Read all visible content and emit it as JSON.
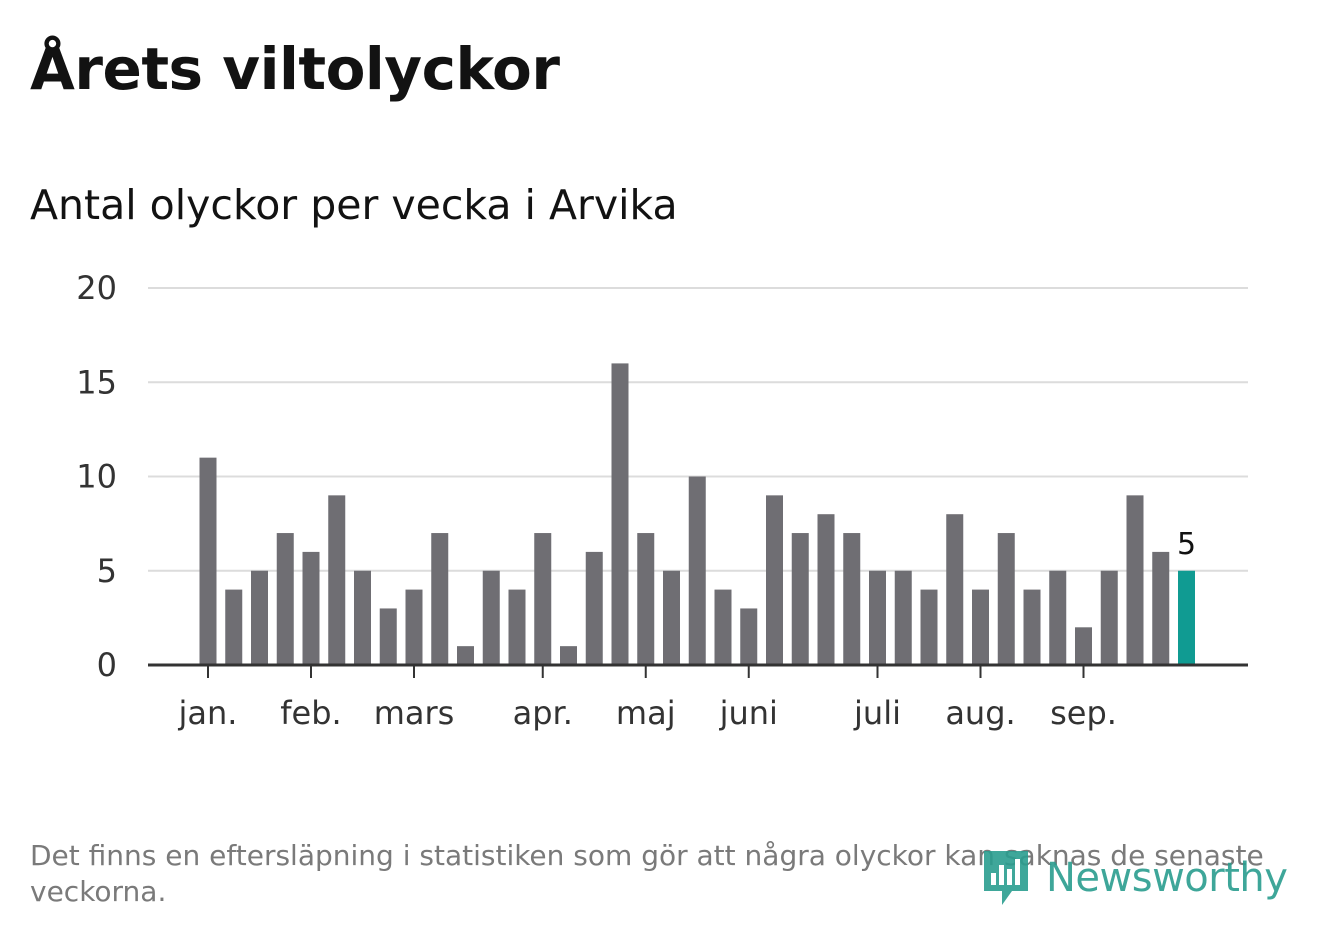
{
  "header": {
    "title": "Årets viltolyckor",
    "subtitle": "Antal olyckor per vecka i Arvika"
  },
  "footnote": "Det finns en eftersläpning i statistiken som gör att några olyckor kan saknas de senaste veckorna.",
  "brand": {
    "name": "Newsworthy",
    "icon": "newsworthy-logo-icon"
  },
  "colors": {
    "bar": "#6f6e73",
    "highlight": "#109b92",
    "grid": "#dcdcdc",
    "axis": "#333333",
    "brand": "#2a9d8f"
  },
  "chart_data": {
    "type": "bar",
    "title": "Antal olyckor per vecka i Arvika",
    "xlabel": "",
    "ylabel": "",
    "ylim": [
      0,
      20
    ],
    "yticks": [
      0,
      5,
      10,
      15,
      20
    ],
    "grid": true,
    "values": [
      11,
      4,
      5,
      7,
      6,
      9,
      5,
      3,
      4,
      7,
      1,
      5,
      4,
      7,
      1,
      6,
      16,
      7,
      5,
      10,
      4,
      3,
      9,
      7,
      8,
      7,
      5,
      5,
      4,
      8,
      4,
      7,
      4,
      5,
      2,
      5,
      9,
      6,
      5
    ],
    "highlight_index": 38,
    "highlight_label": "5",
    "month_labels": [
      {
        "label": "jan.",
        "index": 0
      },
      {
        "label": "feb.",
        "index": 4
      },
      {
        "label": "mars",
        "index": 8
      },
      {
        "label": "apr.",
        "index": 13
      },
      {
        "label": "maj",
        "index": 17
      },
      {
        "label": "juni",
        "index": 21
      },
      {
        "label": "juli",
        "index": 26
      },
      {
        "label": "aug.",
        "index": 30
      },
      {
        "label": "sep.",
        "index": 34
      }
    ]
  }
}
